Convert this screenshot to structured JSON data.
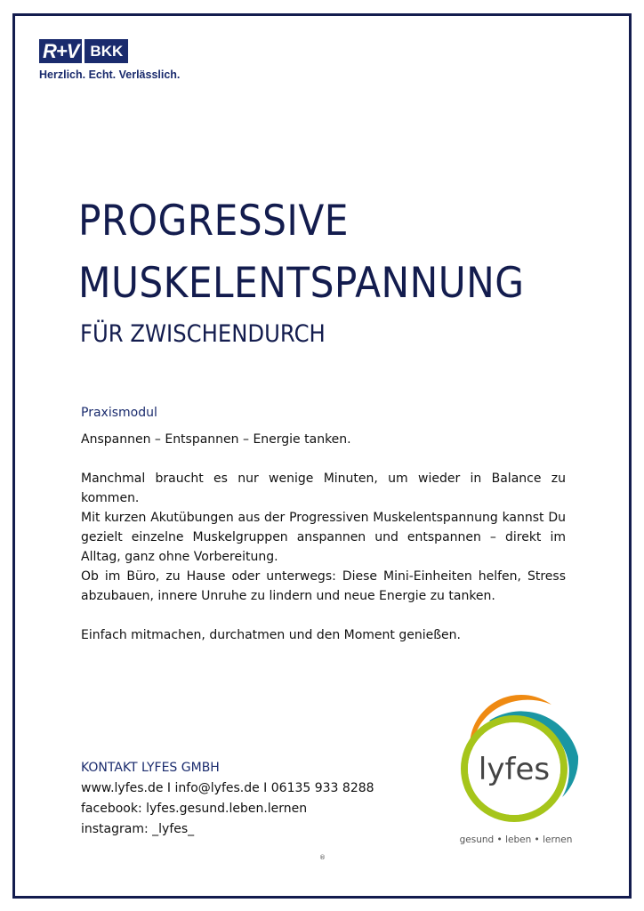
{
  "header": {
    "logo_text": "R+V",
    "logo_badge": "BKK",
    "slogan": "Herzlich. Echt. Verlässlich."
  },
  "title": {
    "line1": "PROGRESSIVE",
    "line2": "MUSKELENTSPANNUNG",
    "subtitle": "FÜR ZWISCHENDURCH"
  },
  "module_label": "Praxismodul",
  "intro": "Anspannen – Entspannen – Energie tanken.",
  "paragraphs": [
    "Manchmal braucht es nur wenige Minuten, um wieder in Balance zu kommen.",
    "Mit kurzen Akutübungen aus der Progressiven Muskelentspannung kannst Du gezielt einzelne Muskelgruppen anspannen und entspannen – direkt im Alltag, ganz ohne Vorbereitung.",
    "Ob im Büro, zu Hause oder unterwegs: Diese Mini-Einheiten helfen, Stress abzubauen, innere Unruhe zu lindern und neue Energie zu tanken."
  ],
  "closing": "Einfach mitmachen, durchatmen und den Moment genießen.",
  "contact": {
    "heading": "KONTAKT LYFES GMBH",
    "line1": "www.lyfes.de I info@lyfes.de I 06135 933 8288",
    "line2": "facebook: lyfes.gesund.leben.lernen",
    "line3": "instagram: _lyfes_"
  },
  "registered_mark": "®",
  "lyfes_logo": {
    "name": "lyfes",
    "tagline": "gesund • leben • lernen",
    "colors": {
      "orange": "#ef8a12",
      "teal": "#1a96a3",
      "green": "#a6c51a"
    }
  },
  "colors": {
    "navy": "#131c4e"
  }
}
